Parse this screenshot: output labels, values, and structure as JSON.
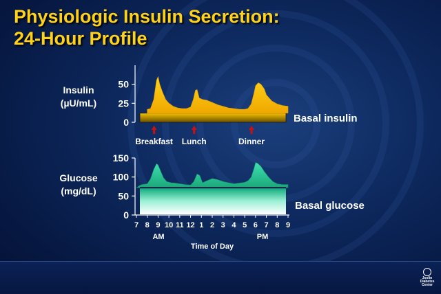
{
  "title": {
    "line1": "Physiologic Insulin Secretion:",
    "line2": "24-Hour Profile"
  },
  "footer": {
    "logo_icon": "joslin-logo-icon",
    "logo_line1": "Joslin",
    "logo_line2": "Diabetes",
    "logo_line3": "Center"
  },
  "colors": {
    "insulin_curve": "#f5c400",
    "glucose_curve": "#2ec89a",
    "meal_arrow": "#cc1010",
    "title": "#ffd21a"
  },
  "chart_data": [
    {
      "type": "area",
      "ylabel_line1": "Insulin",
      "ylabel_line2": "(µU/mL)",
      "ylim": [
        0,
        75
      ],
      "yticks": [
        0,
        25,
        50
      ],
      "ytick_labels": [
        "0",
        "25",
        "50"
      ],
      "x_hours": [
        8,
        8.3,
        8.6,
        8.85,
        9,
        9.15,
        9.4,
        9.7,
        10,
        10.4,
        10.8,
        11.2,
        11.6,
        12,
        12.25,
        12.45,
        12.6,
        12.8,
        13.1,
        13.5,
        14,
        14.5,
        15,
        15.5,
        16,
        16.5,
        17,
        17.3,
        17.6,
        17.85,
        18,
        18.25,
        18.5,
        18.8,
        19,
        19.5,
        20,
        20.5,
        21
      ],
      "values": [
        17,
        18,
        30,
        55,
        60,
        50,
        40,
        30,
        25,
        21,
        19,
        18,
        18,
        20,
        30,
        42,
        43,
        32,
        30,
        29,
        26,
        23,
        21,
        19,
        18,
        17,
        17,
        18,
        24,
        38,
        48,
        52,
        50,
        44,
        36,
        28,
        24,
        22,
        21
      ],
      "basal_label": "Basal insulin",
      "basal_level": 12,
      "meal_markers": [
        {
          "label": "Breakfast",
          "hour": 8.5
        },
        {
          "label": "Lunch",
          "hour": 12.2
        },
        {
          "label": "Dinner",
          "hour": 17.5
        }
      ],
      "arrow_icon": "red-up-arrow-icon"
    },
    {
      "type": "area",
      "ylabel_line1": "Glucose",
      "ylabel_line2": "(mg/dL)",
      "ylim": [
        0,
        150
      ],
      "yticks": [
        0,
        50,
        100,
        150
      ],
      "ytick_labels": [
        "0",
        "50",
        "100",
        "150"
      ],
      "x_hours": [
        7,
        7.5,
        8,
        8.3,
        8.6,
        8.85,
        9,
        9.2,
        9.5,
        9.8,
        10.2,
        10.6,
        11,
        11.5,
        12,
        12.3,
        12.6,
        12.85,
        13.1,
        13.5,
        14,
        14.5,
        15,
        15.5,
        16,
        16.5,
        17,
        17.3,
        17.6,
        17.85,
        18,
        18.2,
        18.5,
        18.8,
        19.2,
        19.6,
        20,
        20.5,
        21
      ],
      "values": [
        78,
        80,
        82,
        95,
        120,
        135,
        132,
        118,
        98,
        88,
        85,
        84,
        82,
        80,
        79,
        88,
        108,
        104,
        85,
        90,
        96,
        93,
        88,
        85,
        82,
        84,
        86,
        90,
        100,
        122,
        138,
        136,
        128,
        115,
        100,
        88,
        82,
        80,
        80
      ],
      "basal_label": "Basal glucose",
      "basal_level": 72,
      "xlim": [
        7,
        21
      ],
      "xticks": [
        7,
        8,
        9,
        10,
        11,
        12,
        13,
        14,
        15,
        16,
        17,
        18,
        19,
        20,
        21
      ],
      "xtick_labels": [
        "7",
        "8",
        "9",
        "10",
        "11",
        "12",
        "1",
        "2",
        "3",
        "4",
        "5",
        "6",
        "7",
        "8",
        "9"
      ],
      "am_label": "AM",
      "pm_label": "PM",
      "xlabel": "Time of Day"
    }
  ]
}
